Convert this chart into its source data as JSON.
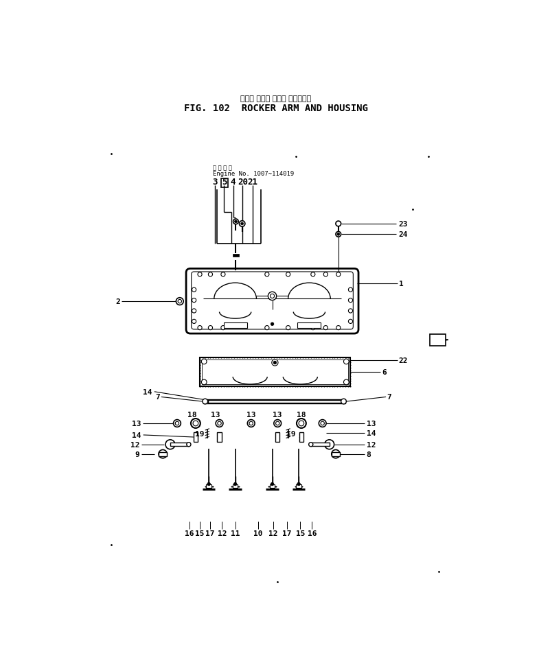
{
  "title_japanese": "ロッカ アーム および ハウジング",
  "title_english": "FIG. 102  ROCKER ARM AND HOUSING",
  "engine_note_jp": "適 用 号 機",
  "engine_note_en": "Engine No. 1007~114019",
  "bg_color": "#ffffff",
  "fg_color": "#000000",
  "fig_width": 7.85,
  "fig_height": 9.79,
  "dpi": 100
}
